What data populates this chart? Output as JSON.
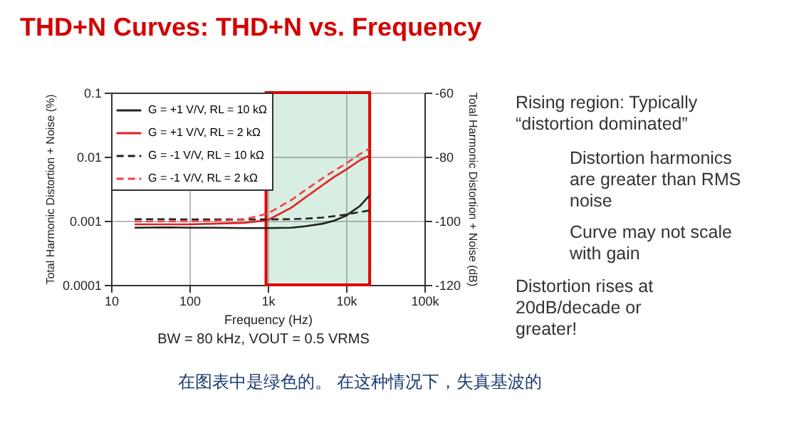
{
  "chart_data": {
    "type": "line",
    "title": "THD+N Curves: THD+N vs. Frequency",
    "xlabel": "Frequency (Hz)",
    "ylabel": "Total Harmonic Distortion + Noise (%)",
    "y2label": "Total Harmonic Distortion + Noise (dB)",
    "x": [
      20,
      50,
      100,
      200,
      500,
      1000,
      2000,
      3000,
      5000,
      7000,
      10000,
      15000,
      20000
    ],
    "series": [
      {
        "name": "G = +1 V/V, RL = 10 kΩ",
        "color": "#222222",
        "line_style": "solid",
        "values": [
          0.00078,
          0.00079,
          0.00078,
          0.00078,
          0.00077,
          0.00077,
          0.00078,
          0.00082,
          0.0009,
          0.001,
          0.0012,
          0.0017,
          0.0025
        ]
      },
      {
        "name": "G = +1 V/V, RL = 2 kΩ",
        "color": "#e02020",
        "line_style": "solid",
        "values": [
          0.00088,
          0.00088,
          0.00088,
          0.0009,
          0.00093,
          0.00102,
          0.0016,
          0.0023,
          0.0036,
          0.0048,
          0.0063,
          0.0088,
          0.0105
        ]
      },
      {
        "name": "G = -1 V/V, RL = 10 kΩ",
        "color": "#222222",
        "line_style": "dashed",
        "values": [
          0.00106,
          0.00106,
          0.00105,
          0.00105,
          0.00105,
          0.00105,
          0.00106,
          0.00108,
          0.00112,
          0.00118,
          0.00125,
          0.00137,
          0.00145
        ]
      },
      {
        "name": "G = -1 V/V, RL = 2 kΩ",
        "color": "#f04040",
        "line_style": "dashed",
        "values": [
          0.00098,
          0.00098,
          0.00099,
          0.001,
          0.00105,
          0.0013,
          0.0021,
          0.003,
          0.0046,
          0.006,
          0.0078,
          0.011,
          0.0135
        ]
      }
    ],
    "log": "xy",
    "xlim": [
      10,
      100000
    ],
    "ylim": [
      0.0001,
      0.1
    ],
    "xticks": [
      10,
      100,
      {
        "value": 1000,
        "label": "1k"
      },
      {
        "value": 10000,
        "label": "10k"
      },
      {
        "value": 100000,
        "label": "100k"
      }
    ],
    "yticks": [
      0.0001,
      0.001,
      0.01,
      0.1
    ],
    "y2lim": [
      -120,
      -60
    ],
    "y2ticks": [
      -120,
      -100,
      -80,
      -60
    ],
    "grid": true,
    "legend": "top left",
    "bands": [
      {
        "axis": "x",
        "from": 950,
        "to": 20000,
        "color": "#2e9e5e"
      }
    ],
    "annotations": [
      "BW = 80 kHz, VOUT = 0.5 VRMS",
      "Rising region: Typically “distortion dominated”",
      "Distortion harmonics are greater than RMS noise",
      "Curve may not scale with gain",
      "Distortion rises at 20dB/decade or greater!",
      "在图表中是绿色的。 在这种情况下，失真基波的"
    ]
  }
}
